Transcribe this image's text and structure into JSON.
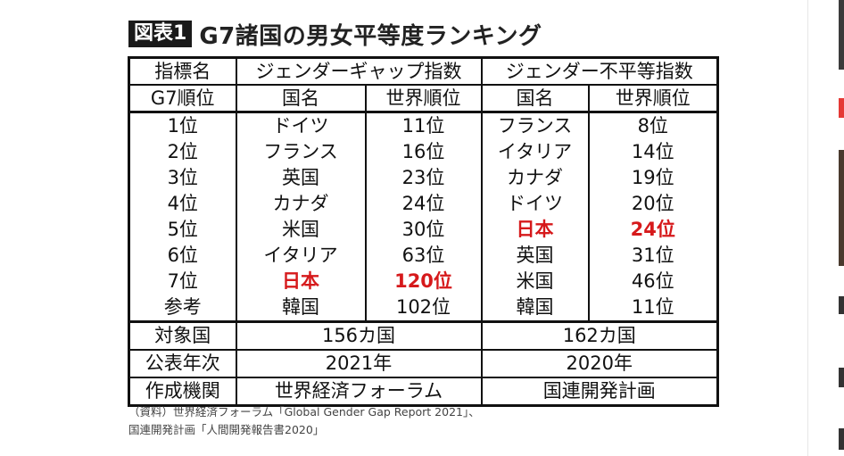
{
  "figure": {
    "label": "図表1",
    "title": "G7諸国の男女平等度ランキング"
  },
  "table": {
    "header": {
      "indicator_label": "指標名",
      "gap_index": "ジェンダーギャップ指数",
      "inequality_index": "ジェンダー不平等指数"
    },
    "subheader": {
      "rank_label": "G7順位",
      "country1": "国名",
      "world_rank1": "世界順位",
      "country2": "国名",
      "world_rank2": "世界順位"
    },
    "rows": [
      {
        "rank": "1位",
        "gap_country": "ドイツ",
        "gap_world": "11位",
        "ineq_country": "フランス",
        "ineq_world": "8位"
      },
      {
        "rank": "2位",
        "gap_country": "フランス",
        "gap_world": "16位",
        "ineq_country": "イタリア",
        "ineq_world": "14位"
      },
      {
        "rank": "3位",
        "gap_country": "英国",
        "gap_world": "23位",
        "ineq_country": "カナダ",
        "ineq_world": "19位"
      },
      {
        "rank": "4位",
        "gap_country": "カナダ",
        "gap_world": "24位",
        "ineq_country": "ドイツ",
        "ineq_world": "20位"
      },
      {
        "rank": "5位",
        "gap_country": "米国",
        "gap_world": "30位",
        "ineq_country": "日本",
        "ineq_world": "24位"
      },
      {
        "rank": "6位",
        "gap_country": "イタリア",
        "gap_world": "63位",
        "ineq_country": "英国",
        "ineq_world": "31位"
      },
      {
        "rank": "7位",
        "gap_country": "日本",
        "gap_world": "120位",
        "ineq_country": "米国",
        "ineq_world": "46位"
      },
      {
        "rank": "参考",
        "gap_country": "韓国",
        "gap_world": "102位",
        "ineq_country": "韓国",
        "ineq_world": "11位"
      }
    ],
    "footer": [
      {
        "label": "対象国",
        "gap": "156カ国",
        "ineq": "162カ国"
      },
      {
        "label": "公表年次",
        "gap": "2021年",
        "ineq": "2020年"
      },
      {
        "label": "作成機関",
        "gap": "世界経済フォーラム",
        "ineq": "国連開発計画"
      }
    ]
  },
  "source": {
    "line1": "（資料）世界経済フォーラム「Global Gender Gap Report 2021」、",
    "line2": "国連開発計画「人間開発報告書2020」"
  },
  "colors": {
    "highlight": "#d6191b",
    "side_accent": "#e53935"
  }
}
